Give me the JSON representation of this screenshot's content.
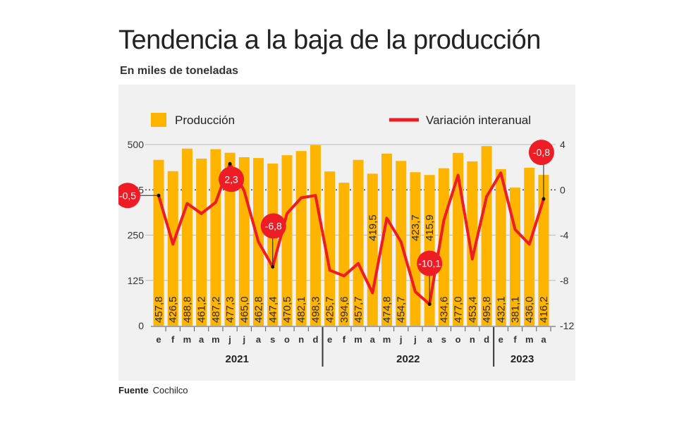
{
  "title": "Tendencia a la baja de la producción",
  "subtitle": "En miles de toneladas",
  "source_label": "Fuente",
  "source_value": "Cochilco",
  "colors": {
    "bars": "#FFB400",
    "line": "#EE1C25",
    "panel": "#F1F1F1"
  },
  "chart_data": {
    "type": "bar+line",
    "categories": [
      "e",
      "f",
      "m",
      "a",
      "m",
      "j",
      "j",
      "a",
      "s",
      "o",
      "n",
      "d",
      "e",
      "f",
      "m",
      "a",
      "m",
      "j",
      "j",
      "a",
      "s",
      "o",
      "n",
      "d",
      "e",
      "f",
      "m",
      "a"
    ],
    "years": [
      {
        "label": "2021",
        "months": 12
      },
      {
        "label": "2022",
        "months": 12
      },
      {
        "label": "2023",
        "months": 4
      }
    ],
    "series": [
      {
        "name": "Producción",
        "type": "bar",
        "axis": "left",
        "values": [
          457.8,
          426.5,
          488.8,
          461.2,
          487.2,
          477.3,
          465.0,
          462.8,
          447.4,
          470.5,
          482.1,
          498.3,
          425.7,
          394.6,
          457.7,
          419.5,
          474.8,
          454.7,
          423.7,
          415.9,
          434.6,
          477.0,
          453.4,
          495.8,
          432.1,
          381.1,
          436.0,
          416.2
        ],
        "labels": [
          "457,8",
          "426,5",
          "488,8",
          "461,2",
          "487,2",
          "477,3",
          "465,0",
          "462,8",
          "447,4",
          "470,5",
          "482,1",
          "498,3",
          "425,7",
          "394,6",
          "457,7",
          "419,5",
          "474,8",
          "454,7",
          "423,7",
          "415,9",
          "434,6",
          "477,0",
          "453,4",
          "495,8",
          "432,1",
          "381,1",
          "436,0",
          "416,2"
        ]
      },
      {
        "name": "Variación interanual",
        "type": "line",
        "axis": "right",
        "values": [
          -0.5,
          -4.8,
          -1.2,
          -2.1,
          -1.1,
          2.3,
          -0.1,
          -4.6,
          -6.8,
          -2.1,
          -0.7,
          -0.5,
          -7.1,
          -7.6,
          -6.5,
          -9.1,
          -2.5,
          -4.6,
          -9.0,
          -10.1,
          -2.7,
          1.3,
          -6.1,
          -0.6,
          1.5,
          -3.5,
          -4.8,
          -0.8
        ]
      }
    ],
    "callouts": [
      {
        "index": 0,
        "label": "-0,5"
      },
      {
        "index": 5,
        "label": "2,3"
      },
      {
        "index": 8,
        "label": "-6,8"
      },
      {
        "index": 19,
        "label": "-10,1"
      },
      {
        "index": 27,
        "label": "-0,8"
      }
    ],
    "y_left": {
      "range": [
        0,
        500
      ],
      "ticks": [
        "0",
        "125",
        "250",
        "375",
        "500"
      ]
    },
    "y_right": {
      "range": [
        -12,
        4
      ],
      "ticks": [
        "-12",
        "-8",
        "-4",
        "0",
        "4"
      ]
    },
    "grid": true,
    "legend_position": "top"
  }
}
